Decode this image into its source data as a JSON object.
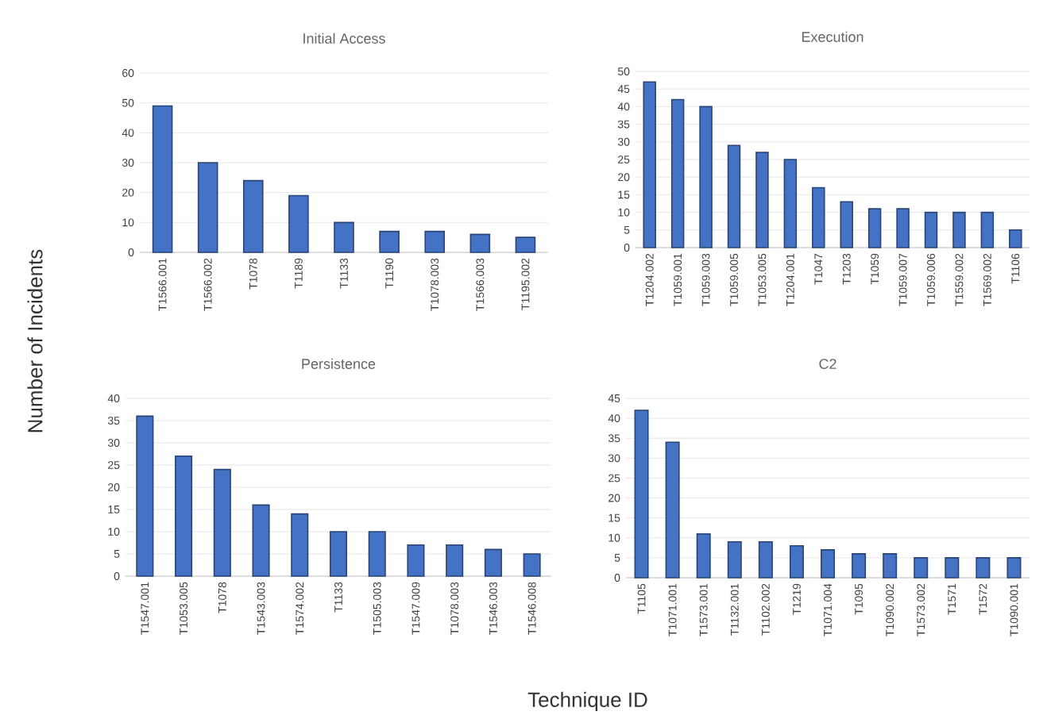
{
  "chart_data": [
    {
      "type": "bar",
      "title": "Initial Access",
      "ylabel": "Number of Incidents",
      "categories": [
        "T1566.001",
        "T1566.002",
        "T1078",
        "T1189",
        "T1133",
        "T1190",
        "T1078.003",
        "T1566.003",
        "T1195.002"
      ],
      "values": [
        49,
        30,
        24,
        19,
        10,
        7,
        7,
        6,
        5
      ],
      "color": "#4472c4",
      "ylim": [
        0,
        60
      ],
      "yticks": [
        0,
        10,
        20,
        30,
        40,
        50,
        60
      ],
      "grid": "y"
    },
    {
      "type": "bar",
      "title": "Execution",
      "categories": [
        "T1204.002",
        "T1059.001",
        "T1059.003",
        "T1059.005",
        "T1053.005",
        "T1204.001",
        "T1047",
        "T1203",
        "T1059",
        "T1059.007",
        "T1059.006",
        "T1559.002",
        "T1569.002",
        "T1106"
      ],
      "values": [
        47,
        42,
        40,
        29,
        27,
        25,
        17,
        13,
        11,
        11,
        10,
        10,
        10,
        5
      ],
      "color": "#4472c4",
      "ylim": [
        0,
        50
      ],
      "yticks": [
        0,
        5,
        10,
        15,
        20,
        25,
        30,
        35,
        40,
        45,
        50
      ],
      "grid": "y"
    },
    {
      "type": "bar",
      "title": "Persistence",
      "xlabel": "Technique ID",
      "categories": [
        "T1547.001",
        "T1053.005",
        "T1078",
        "T1543.003",
        "T1574.002",
        "T1133",
        "T1505.003",
        "T1547.009",
        "T1078.003",
        "T1546.003",
        "T1546.008"
      ],
      "values": [
        36,
        27,
        24,
        16,
        14,
        10,
        10,
        7,
        7,
        6,
        5
      ],
      "color": "#4472c4",
      "ylim": [
        0,
        40
      ],
      "yticks": [
        0,
        5,
        10,
        15,
        20,
        25,
        30,
        35,
        40
      ],
      "grid": "y"
    },
    {
      "type": "bar",
      "title": "C2",
      "categories": [
        "T1105",
        "T1071.001",
        "T1573.001",
        "T1132.001",
        "T1102.002",
        "T1219",
        "T1071.004",
        "T1095",
        "T1090.002",
        "T1573.002",
        "T1571",
        "T1572",
        "T1090.001"
      ],
      "values": [
        42,
        34,
        11,
        9,
        9,
        8,
        7,
        6,
        6,
        5,
        5,
        5,
        5
      ],
      "color": "#4472c4",
      "ylim": [
        0,
        45
      ],
      "yticks": [
        0,
        5,
        10,
        15,
        20,
        25,
        30,
        35,
        40,
        45
      ],
      "grid": "y"
    }
  ]
}
